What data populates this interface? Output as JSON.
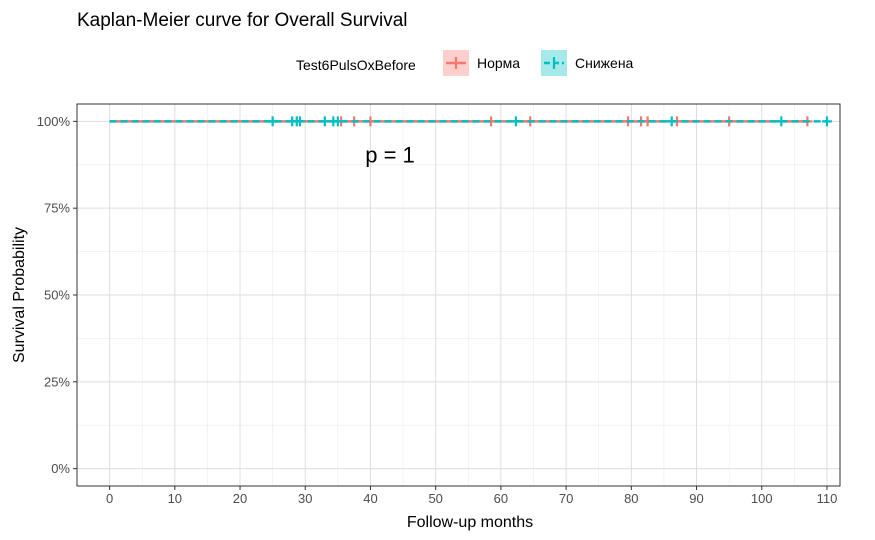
{
  "chart_data": {
    "type": "line",
    "subtype": "kaplan-meier",
    "title": "Kaplan-Meier curve for Overall Survival",
    "xlabel": "Follow-up months",
    "ylabel": "Survival Probability",
    "xlim": [
      -5,
      112
    ],
    "ylim": [
      -0.05,
      1.05
    ],
    "x_ticks": [
      0,
      10,
      20,
      30,
      40,
      50,
      60,
      70,
      80,
      90,
      100,
      110
    ],
    "y_ticks": [
      0,
      0.25,
      0.5,
      0.75,
      1.0
    ],
    "y_tick_labels": [
      "0%",
      "25%",
      "50%",
      "75%",
      "100%"
    ],
    "legend": {
      "title": "Test6PulsOxBefore",
      "position": "top"
    },
    "grid": true,
    "annotation": {
      "text": "p = 1",
      "x": 43,
      "y": 0.905
    },
    "series": [
      {
        "name": "Норма",
        "color": "#F8766D",
        "linestyle": "solid",
        "x": [
          0,
          107
        ],
        "y": [
          1.0,
          1.0
        ],
        "censor_x": [
          35.5,
          37.5,
          40,
          58.5,
          64.5,
          79.5,
          81.5,
          82.5,
          87,
          95,
          107
        ]
      },
      {
        "name": "Снижена",
        "color": "#00BFC4",
        "linestyle": "dashed",
        "x": [
          0,
          110
        ],
        "y": [
          1.0,
          1.0
        ],
        "censor_x": [
          25,
          28,
          28.7,
          29.2,
          33,
          34.3,
          35,
          62.3,
          86.2,
          103,
          110
        ]
      }
    ]
  }
}
